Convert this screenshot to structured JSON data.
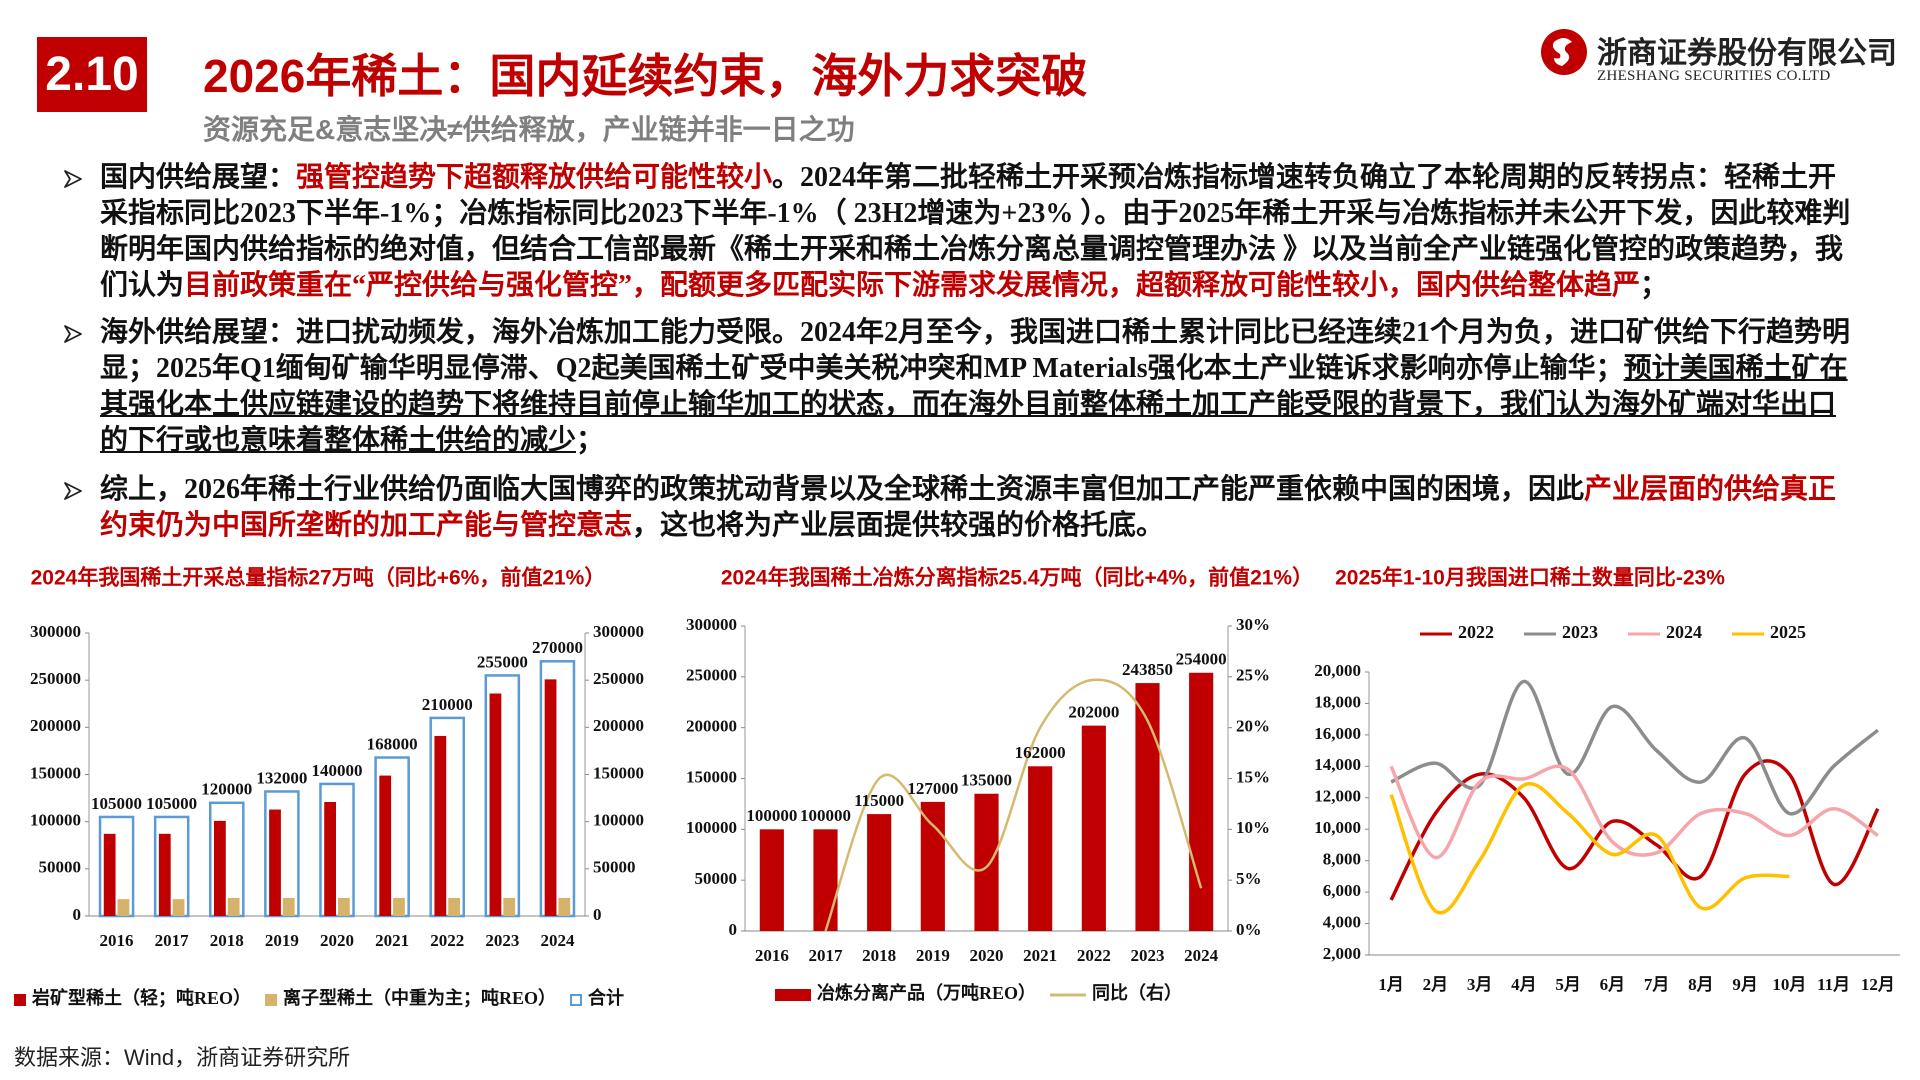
{
  "header": {
    "section": "2.10",
    "title": "2026年稀土：国内延续约束，海外力求突破",
    "subtitle": "资源充足&意志坚决≠供给释放，产业链并非一日之功",
    "company": "浙商证券股份有限公司",
    "company_en": "ZHESHANG SECURITIES CO.LTD"
  },
  "bullets": [
    {
      "segments": [
        {
          "text": "国内供给展望："
        },
        {
          "text": "强管控趋势下超额释放供给可能性较小",
          "color": "#c00000"
        },
        {
          "text": "。2024年第二批轻稀土开采预冶炼指标增速转负确立了本轮周期的反转拐点：轻稀土开采指标同比2023下半年-1%；冶炼指标同比2023下半年-1%（ 23H2增速为+23% ）。由于2025年稀土开采与冶炼指标并未公开下发，因此较难判断明年国内供给指标的绝对值，但结合工信部最新《稀土开采和稀土冶炼分离总量调控管理办法 》以及当前全产业链强化管控的政策趋势，我们认为"
        },
        {
          "text": "目前政策重在“严控供给与强化管控”，配额更多匹配实际下游需求发展情况，超额释放可能性较小，国内供给整体趋严",
          "color": "#c00000"
        },
        {
          "text": "；"
        }
      ]
    },
    {
      "segments": [
        {
          "text": "海外供给展望：进口扰动频发，海外冶炼加工能力受限。2024年2月至今，我国进口稀土累计同比已经连续21个月为负，进口矿供给下行趋势明显；2025年Q1缅甸矿输华明显停滞、Q2起美国稀土矿受中美关税冲突和MP Materials强化本土产业链诉求影响亦停止输华；"
        },
        {
          "text": "预计美国稀土矿在其强化本土供应链建设的趋势下将维持目前停止输华加工的状态，而在海外目前整体稀土加工产能受限的背景下，我们认为海外矿端对华出口的下行或也意味着整体稀土供给的减少",
          "underline": true
        },
        {
          "text": "；"
        }
      ]
    },
    {
      "segments": [
        {
          "text": "综上，2026年稀土行业供给仍面临大国博弈的政策扰动背景以及全球稀土资源丰富但加工产能严重依赖中国的困境，因此"
        },
        {
          "text": "产业层面的供给真正约束仍为中国所垄断的加工产能与管控意志",
          "color": "#c00000"
        },
        {
          "text": "，这也将为产业层面提供较强的价格托底。"
        }
      ]
    }
  ],
  "chart_data": [
    {
      "type": "bar",
      "title": "2024年我国稀土开采总量指标27万吨（同比+6%，前值21%）",
      "categories": [
        "2016",
        "2017",
        "2018",
        "2019",
        "2020",
        "2021",
        "2022",
        "2023",
        "2024"
      ],
      "series": [
        {
          "name": "岩矿型稀土（轻；吨REO）",
          "color": "#c00000",
          "values": [
            87100,
            87100,
            100850,
            112850,
            120850,
            148850,
            190850,
            235850,
            250850
          ]
        },
        {
          "name": "离子型稀土（中重为主；吨REO）",
          "color": "#d6b36a",
          "values": [
            17900,
            17900,
            19150,
            19150,
            19150,
            19150,
            19150,
            19150,
            19150
          ]
        },
        {
          "name": "合计",
          "color": "#5b9bd5",
          "outline": true,
          "data_labels": true,
          "values": [
            105000,
            105000,
            120000,
            132000,
            140000,
            168000,
            210000,
            255000,
            270000
          ]
        }
      ],
      "ylim": [
        0,
        300000
      ],
      "yticks": [
        0,
        50000,
        100000,
        150000,
        200000,
        250000,
        300000
      ],
      "y2lim": [
        0,
        300000
      ],
      "y2ticks": [
        0,
        50000,
        100000,
        150000,
        200000,
        250000,
        300000
      ],
      "legend": "bottom"
    },
    {
      "type": "bar",
      "title": "2024年我国稀土冶炼分离指标25.4万吨（同比+4%，前值21%）",
      "categories": [
        "2016",
        "2017",
        "2018",
        "2019",
        "2020",
        "2021",
        "2022",
        "2023",
        "2024"
      ],
      "series": [
        {
          "name": "冶炼分离产品（万吨REO）",
          "color": "#c00000",
          "data_labels": true,
          "values": [
            100000,
            100000,
            115000,
            127000,
            135000,
            162000,
            202000,
            243850,
            254000
          ]
        },
        {
          "name": "同比（右）",
          "type": "line",
          "axis": "y2",
          "color": "#d4b96e",
          "values": [
            null,
            0,
            15,
            10.4,
            6.3,
            20,
            24.7,
            20.7,
            4.2
          ]
        }
      ],
      "ylim": [
        0,
        300000
      ],
      "yticks": [
        0,
        50000,
        100000,
        150000,
        200000,
        250000,
        300000
      ],
      "y2lim": [
        0,
        30
      ],
      "y2ticks": [
        {
          "value": 0,
          "label": "0%"
        },
        {
          "value": 5,
          "label": "5%"
        },
        {
          "value": 10,
          "label": "10%"
        },
        {
          "value": 15,
          "label": "15%"
        },
        {
          "value": 20,
          "label": "20%"
        },
        {
          "value": 25,
          "label": "25%"
        },
        {
          "value": 30,
          "label": "30%"
        }
      ],
      "smooth": true,
      "legend": "bottom"
    },
    {
      "type": "line",
      "title": "2025年1-10月我国进口稀土数量同比-23%",
      "categories": [
        "1月",
        "2月",
        "3月",
        "4月",
        "5月",
        "6月",
        "7月",
        "8月",
        "9月",
        "10月",
        "11月",
        "12月"
      ],
      "series": [
        {
          "name": "2022",
          "color": "#c00000",
          "values": [
            5500,
            11000,
            13500,
            12000,
            7500,
            10500,
            9000,
            7000,
            13500,
            13500,
            6500,
            11300
          ]
        },
        {
          "name": "2023",
          "color": "#8c8c8c",
          "values": [
            13000,
            14200,
            12800,
            19400,
            13500,
            17800,
            15000,
            13000,
            15800,
            11000,
            14000,
            16300
          ]
        },
        {
          "name": "2024",
          "color": "#f4a6ab",
          "values": [
            14000,
            8200,
            13000,
            13200,
            13800,
            9200,
            8500,
            11000,
            11000,
            9600,
            11300,
            9600
          ]
        },
        {
          "name": "2025",
          "color": "#ffc000",
          "values": [
            12200,
            4800,
            8000,
            12800,
            11000,
            8400,
            9600,
            5000,
            6900,
            7000,
            null,
            null
          ]
        }
      ],
      "ylim": [
        2000,
        20000
      ],
      "yticks": [
        {
          "value": 2000,
          "label": "2,000"
        },
        {
          "value": 4000,
          "label": "4,000"
        },
        {
          "value": 6000,
          "label": "6,000"
        },
        {
          "value": 8000,
          "label": "8,000"
        },
        {
          "value": 10000,
          "label": "10,000"
        },
        {
          "value": 12000,
          "label": "12,000"
        },
        {
          "value": 14000,
          "label": "14,000"
        },
        {
          "value": 16000,
          "label": "16,000"
        },
        {
          "value": 18000,
          "label": "18,000"
        },
        {
          "value": 20000,
          "label": "20,000"
        }
      ],
      "smooth": true,
      "legend": "top"
    }
  ],
  "source": "数据来源：Wind，浙商证券研究所"
}
